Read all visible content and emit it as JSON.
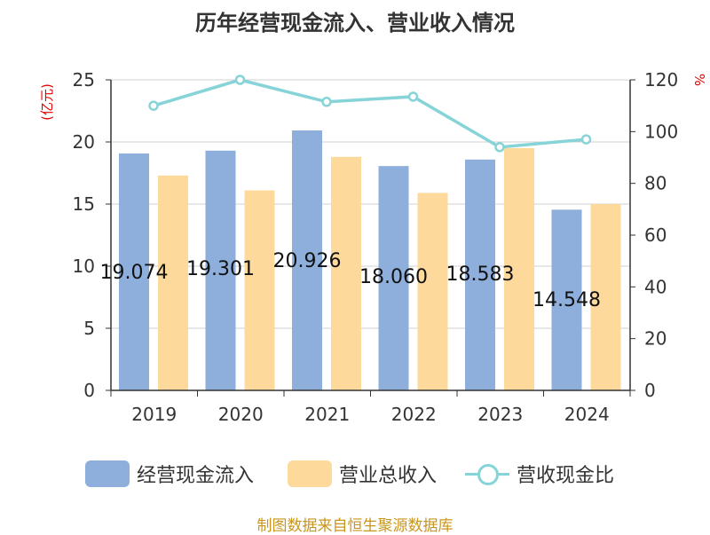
{
  "chart_data": {
    "type": "bar",
    "title": "历年经营现金流入、营业收入情况",
    "categories": [
      "2019",
      "2020",
      "2021",
      "2022",
      "2023",
      "2024"
    ],
    "series": [
      {
        "name": "经营现金流入",
        "axis": "left",
        "kind": "bar",
        "color": "#8eaedb",
        "values": [
          19.074,
          19.301,
          20.926,
          18.06,
          18.583,
          14.548
        ],
        "labels": [
          "19.074",
          "19.301",
          "20.926",
          "18.060",
          "18.583",
          "14.548"
        ]
      },
      {
        "name": "营业总收入",
        "axis": "left",
        "kind": "bar",
        "color": "#fdd99b",
        "values": [
          17.3,
          16.1,
          18.8,
          15.9,
          19.5,
          15.0
        ]
      },
      {
        "name": "营收现金比",
        "axis": "right",
        "kind": "line",
        "color": "#86d3d8",
        "values": [
          110,
          120,
          111.5,
          113.5,
          94,
          97
        ]
      }
    ],
    "left_axis": {
      "label": "(亿元)",
      "ylim": [
        0,
        25
      ],
      "ticks": [
        0,
        5,
        10,
        15,
        20,
        25
      ]
    },
    "right_axis": {
      "label": "%",
      "ylim": [
        0,
        120
      ],
      "ticks": [
        0,
        20,
        40,
        60,
        80,
        100,
        120
      ]
    },
    "source": "制图数据来自恒生聚源数据库"
  }
}
